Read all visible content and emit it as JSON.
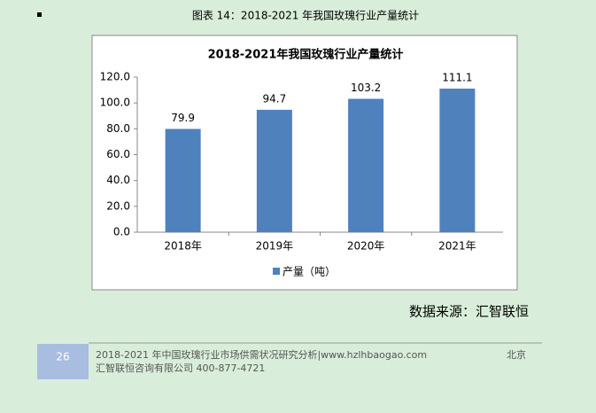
{
  "caption": "图表 14：2018-2021 年我国玫瑰行业产量统计",
  "chart_data": {
    "type": "bar",
    "title": "2018-2021年我国玫瑰行业产量统计",
    "categories": [
      "2018年",
      "2019年",
      "2020年",
      "2021年"
    ],
    "series": [
      {
        "name": "产量（吨）",
        "color": "#4f81bd",
        "values": [
          79.9,
          94.7,
          103.2,
          111.1
        ]
      }
    ],
    "ylim": [
      0,
      120
    ],
    "yticks": [
      {
        "value": 0,
        "label": "0.0"
      },
      {
        "value": 20,
        "label": "20.0"
      },
      {
        "value": 40,
        "label": "40.0"
      },
      {
        "value": 60,
        "label": "60.0"
      },
      {
        "value": 80,
        "label": "80.0"
      },
      {
        "value": 100,
        "label": "100.0"
      },
      {
        "value": 120,
        "label": "120.0"
      }
    ],
    "grid": false,
    "legend": "bottom"
  },
  "source": "数据来源：汇智联恒",
  "footer": {
    "page": "26",
    "line1": "2018-2021 年中国玫瑰行业市场供需状况研究分析|www.hzlhbaogao.com",
    "city": "北京",
    "line2": "汇智联恒咨询有限公司  400-877-4721"
  }
}
